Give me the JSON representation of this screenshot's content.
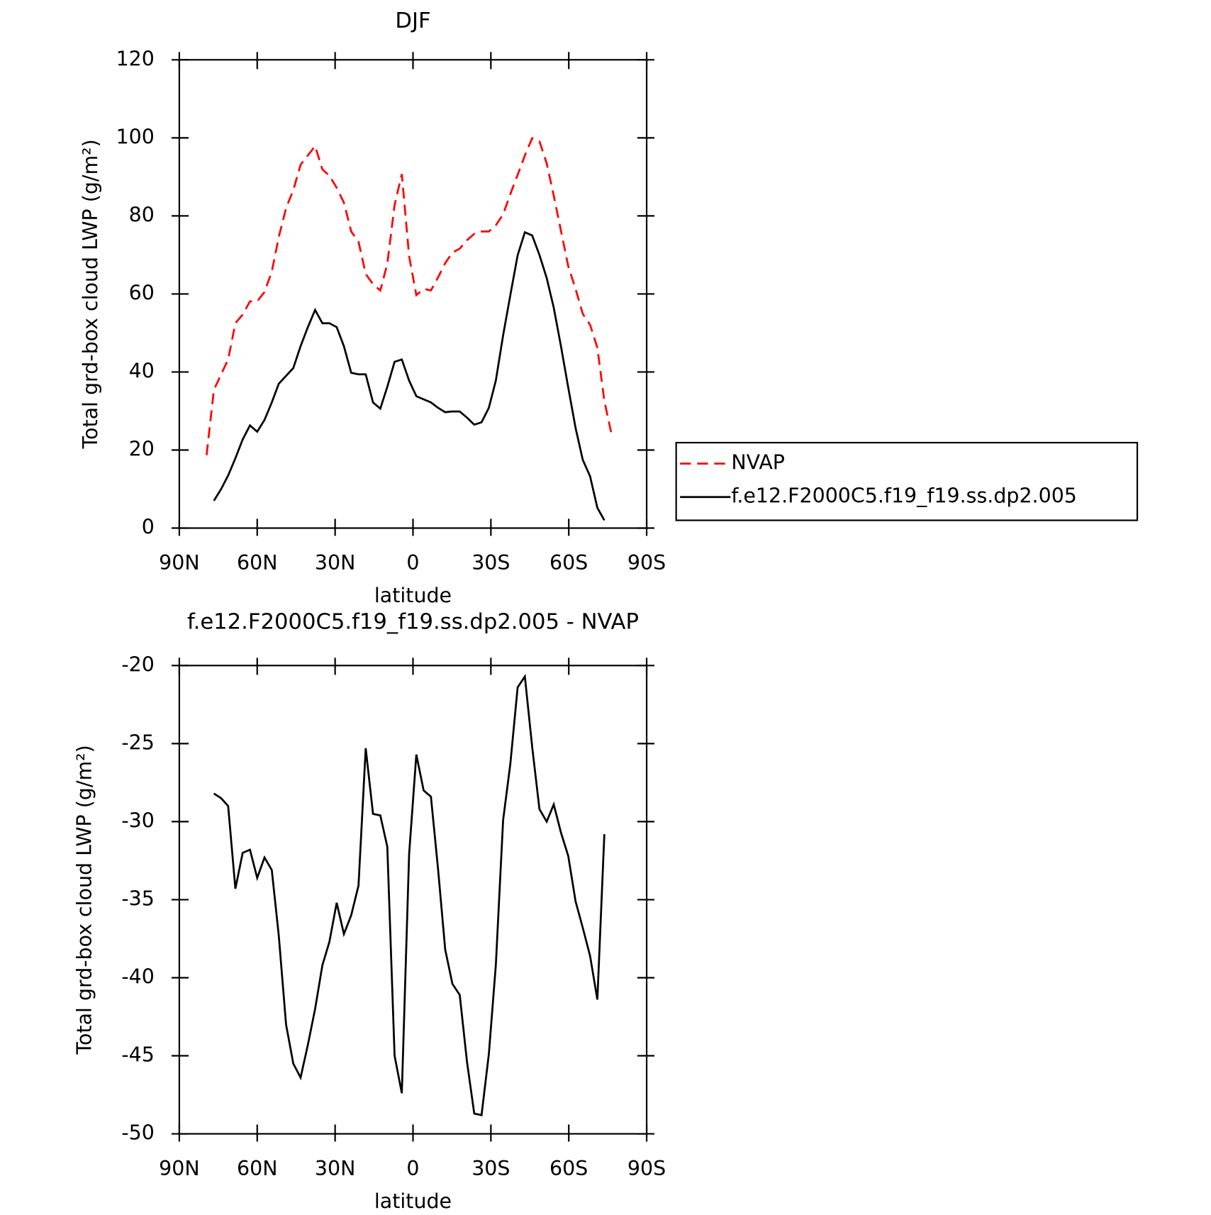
{
  "chart_data": [
    {
      "type": "line",
      "title": "DJF",
      "xlabel": "latitude",
      "ylabel": "Total grd-box cloud LWP (g/m²)",
      "x": [
        79.5,
        76.7,
        73.9,
        71.2,
        68.4,
        65.6,
        62.8,
        60.0,
        57.2,
        54.4,
        51.7,
        48.9,
        46.1,
        43.3,
        40.5,
        37.7,
        34.9,
        32.2,
        29.4,
        26.6,
        23.8,
        21.0,
        18.2,
        15.4,
        12.6,
        9.9,
        7.1,
        4.3,
        1.5,
        -1.3,
        -4.1,
        -6.9,
        -9.7,
        -12.4,
        -15.2,
        -18.0,
        -20.8,
        -23.6,
        -26.4,
        -29.2,
        -31.9,
        -34.7,
        -37.5,
        -40.3,
        -43.1,
        -45.9,
        -48.7,
        -51.5,
        -54.2,
        -57.0,
        -59.8,
        -62.6,
        -65.4,
        -68.2,
        -71.0,
        -73.7,
        -76.5
      ],
      "series": [
        {
          "name": "NVAP",
          "color": "#ff0000",
          "linestyle": "dashed",
          "values": [
            18.7,
            35.4,
            39.4,
            43.2,
            52.5,
            54.7,
            58.1,
            58.1,
            60.5,
            65.7,
            74.6,
            82.0,
            86.6,
            93.1,
            95.5,
            97.9,
            91.9,
            90.3,
            87.2,
            83.4,
            76.0,
            73.4,
            65.1,
            62.5,
            60.9,
            67.7,
            82.8,
            90.7,
            69.7,
            59.7,
            61.3,
            60.9,
            64.3,
            67.9,
            70.6,
            71.6,
            73.8,
            75.4,
            76.0,
            76.0,
            77.6,
            80.4,
            85.6,
            90.5,
            95.5,
            99.9,
            99.1,
            93.5,
            85.2,
            76.2,
            67.1,
            61.3,
            54.9,
            52.1,
            46.2,
            32.6,
            23.9
          ]
        },
        {
          "name": "f.e12.F2000C5.f19_f19.ss.dp2.005",
          "color": "#000000",
          "linestyle": "solid",
          "values": [
            null,
            7.0,
            10.0,
            13.5,
            17.9,
            22.7,
            26.3,
            24.7,
            27.7,
            32.2,
            37.0,
            39.0,
            41.0,
            46.6,
            51.5,
            55.9,
            52.5,
            52.5,
            51.5,
            46.6,
            39.8,
            39.4,
            39.4,
            32.2,
            30.6,
            36.2,
            42.6,
            43.2,
            37.8,
            33.8,
            33.0,
            32.2,
            30.8,
            29.7,
            29.9,
            29.9,
            28.3,
            26.5,
            27.1,
            30.8,
            37.8,
            49.4,
            59.7,
            69.9,
            75.8,
            75.0,
            70.0,
            64.1,
            56.5,
            46.6,
            36.0,
            25.7,
            17.5,
            13.3,
            5.2,
            2.0,
            null
          ]
        }
      ],
      "xlim": [
        90,
        -90
      ],
      "xticks": [
        {
          "value": 90,
          "label": "90N"
        },
        {
          "value": 60,
          "label": "60N"
        },
        {
          "value": 30,
          "label": "30N"
        },
        0,
        {
          "value": -30,
          "label": "30S"
        },
        {
          "value": -60,
          "label": "60S"
        },
        {
          "value": -90,
          "label": "90S"
        }
      ],
      "ylim": [
        0,
        120
      ],
      "yticks": [
        0,
        20,
        40,
        60,
        80,
        100,
        120
      ],
      "legend": "right"
    },
    {
      "type": "line",
      "title": "f.e12.F2000C5.f19_f19.ss.dp2.005 - NVAP",
      "xlabel": "latitude",
      "ylabel": "Total grd-box cloud LWP (g/m²)",
      "x": [
        79.5,
        76.7,
        73.9,
        71.2,
        68.4,
        65.6,
        62.8,
        60.0,
        57.2,
        54.4,
        51.7,
        48.9,
        46.1,
        43.3,
        40.5,
        37.7,
        34.9,
        32.2,
        29.4,
        26.6,
        23.8,
        21.0,
        18.2,
        15.4,
        12.6,
        9.9,
        7.1,
        4.3,
        1.5,
        -1.3,
        -4.1,
        -6.9,
        -9.7,
        -12.4,
        -15.2,
        -18.0,
        -20.8,
        -23.6,
        -26.4,
        -29.2,
        -31.9,
        -34.7,
        -37.5,
        -40.3,
        -43.1,
        -45.9,
        -48.7,
        -51.5,
        -54.2,
        -57.0,
        -59.8,
        -62.6,
        -65.4,
        -68.2,
        -71.0,
        -73.7,
        -76.5
      ],
      "series": [
        {
          "color": "#000000",
          "linestyle": "solid",
          "values": [
            null,
            -28.2,
            -28.5,
            -29.0,
            -34.3,
            -32.0,
            -31.8,
            -33.6,
            -32.3,
            -33.1,
            -37.3,
            -43.0,
            -45.5,
            -46.4,
            -44.3,
            -42.0,
            -39.2,
            -37.7,
            -35.2,
            -37.2,
            -36.0,
            -34.1,
            -25.3,
            -29.5,
            -29.6,
            -31.6,
            -45.0,
            -47.4,
            -32.1,
            -25.7,
            -28.0,
            -28.4,
            -33.1,
            -38.2,
            -40.4,
            -41.1,
            -45.4,
            -48.7,
            -48.8,
            -44.9,
            -39.2,
            -29.9,
            -26.3,
            -21.4,
            -20.7,
            -25.2,
            -29.2,
            -30.0,
            -28.9,
            -30.7,
            -32.2,
            -35.1,
            -36.8,
            -38.6,
            -41.4,
            -30.8,
            null
          ]
        }
      ],
      "xlim": [
        90,
        -90
      ],
      "xticks": [
        {
          "value": 90,
          "label": "90N"
        },
        {
          "value": 60,
          "label": "60N"
        },
        {
          "value": 30,
          "label": "30N"
        },
        0,
        {
          "value": -30,
          "label": "30S"
        },
        {
          "value": -60,
          "label": "60S"
        },
        {
          "value": -90,
          "label": "90S"
        }
      ],
      "ylim": [
        -50,
        -20
      ],
      "yticks": [
        -50,
        -45,
        -40,
        -35,
        -30,
        -25,
        -20
      ]
    }
  ]
}
